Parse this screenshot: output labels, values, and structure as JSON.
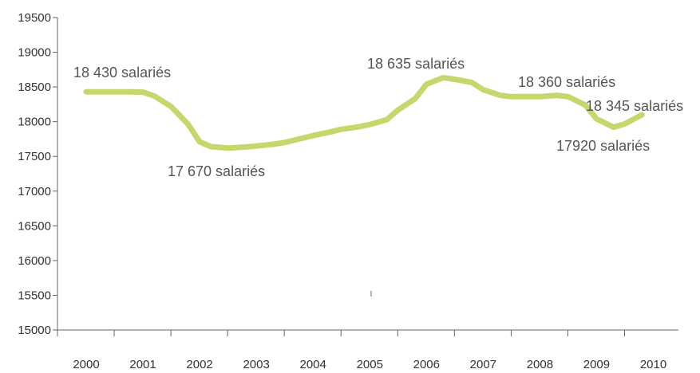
{
  "colors": {
    "line": "#c5d86d",
    "axis": "#666666",
    "text": "#333333",
    "annotation": "#555555"
  },
  "chart_data": {
    "type": "line",
    "title": "",
    "xlabel": "",
    "ylabel": "",
    "ylim": [
      15000,
      19500
    ],
    "xlim": [
      2000,
      2010
    ],
    "grid": false,
    "legend": "none",
    "x_ticks": [
      "2000",
      "2001",
      "2002",
      "2003",
      "2004",
      "2005",
      "2006",
      "2007",
      "2008",
      "2009",
      "2010"
    ],
    "y_ticks": [
      "15000",
      "15500",
      "16000",
      "16500",
      "17000",
      "17500",
      "18000",
      "18500",
      "19000",
      "19500"
    ],
    "series": [
      {
        "x": [
          2000.0,
          2000.4,
          2000.8,
          2001.0,
          2001.2,
          2001.5,
          2001.8,
          2002.0,
          2002.2,
          2002.5,
          2002.8,
          2003.0,
          2003.3,
          2003.5,
          2003.8,
          2004.0,
          2004.3,
          2004.5,
          2004.8,
          2005.0,
          2005.3,
          2005.5,
          2005.8,
          2006.0,
          2006.3,
          2006.5,
          2006.8,
          2007.0,
          2007.3,
          2007.5,
          2007.8,
          2008.0,
          2008.3,
          2008.5,
          2008.8,
          2009.0,
          2009.3,
          2009.5,
          2009.8
        ],
        "y": [
          18430,
          18430,
          18430,
          18425,
          18370,
          18215,
          17960,
          17710,
          17640,
          17620,
          17635,
          17650,
          17675,
          17700,
          17760,
          17800,
          17850,
          17890,
          17925,
          17960,
          18030,
          18170,
          18330,
          18540,
          18635,
          18610,
          18565,
          18460,
          18380,
          18360,
          18360,
          18360,
          18380,
          18360,
          18240,
          18040,
          17920,
          17970,
          18100
        ]
      }
    ],
    "annotations": [
      {
        "text": "18 430 salariés",
        "x": 2000.0,
        "y": 18430
      },
      {
        "text": "17 670 salariés",
        "x": 2002.0,
        "y": 17670
      },
      {
        "text": "18 635 salariés",
        "x": 2006.0,
        "y": 18635
      },
      {
        "text": "18 360 salariés",
        "x": 2008.0,
        "y": 18360
      },
      {
        "text": "18 345 salariés",
        "x": 2009.0,
        "y": 18345
      },
      {
        "text": "17920 salariés",
        "x": 2009.0,
        "y": 17920
      }
    ]
  }
}
